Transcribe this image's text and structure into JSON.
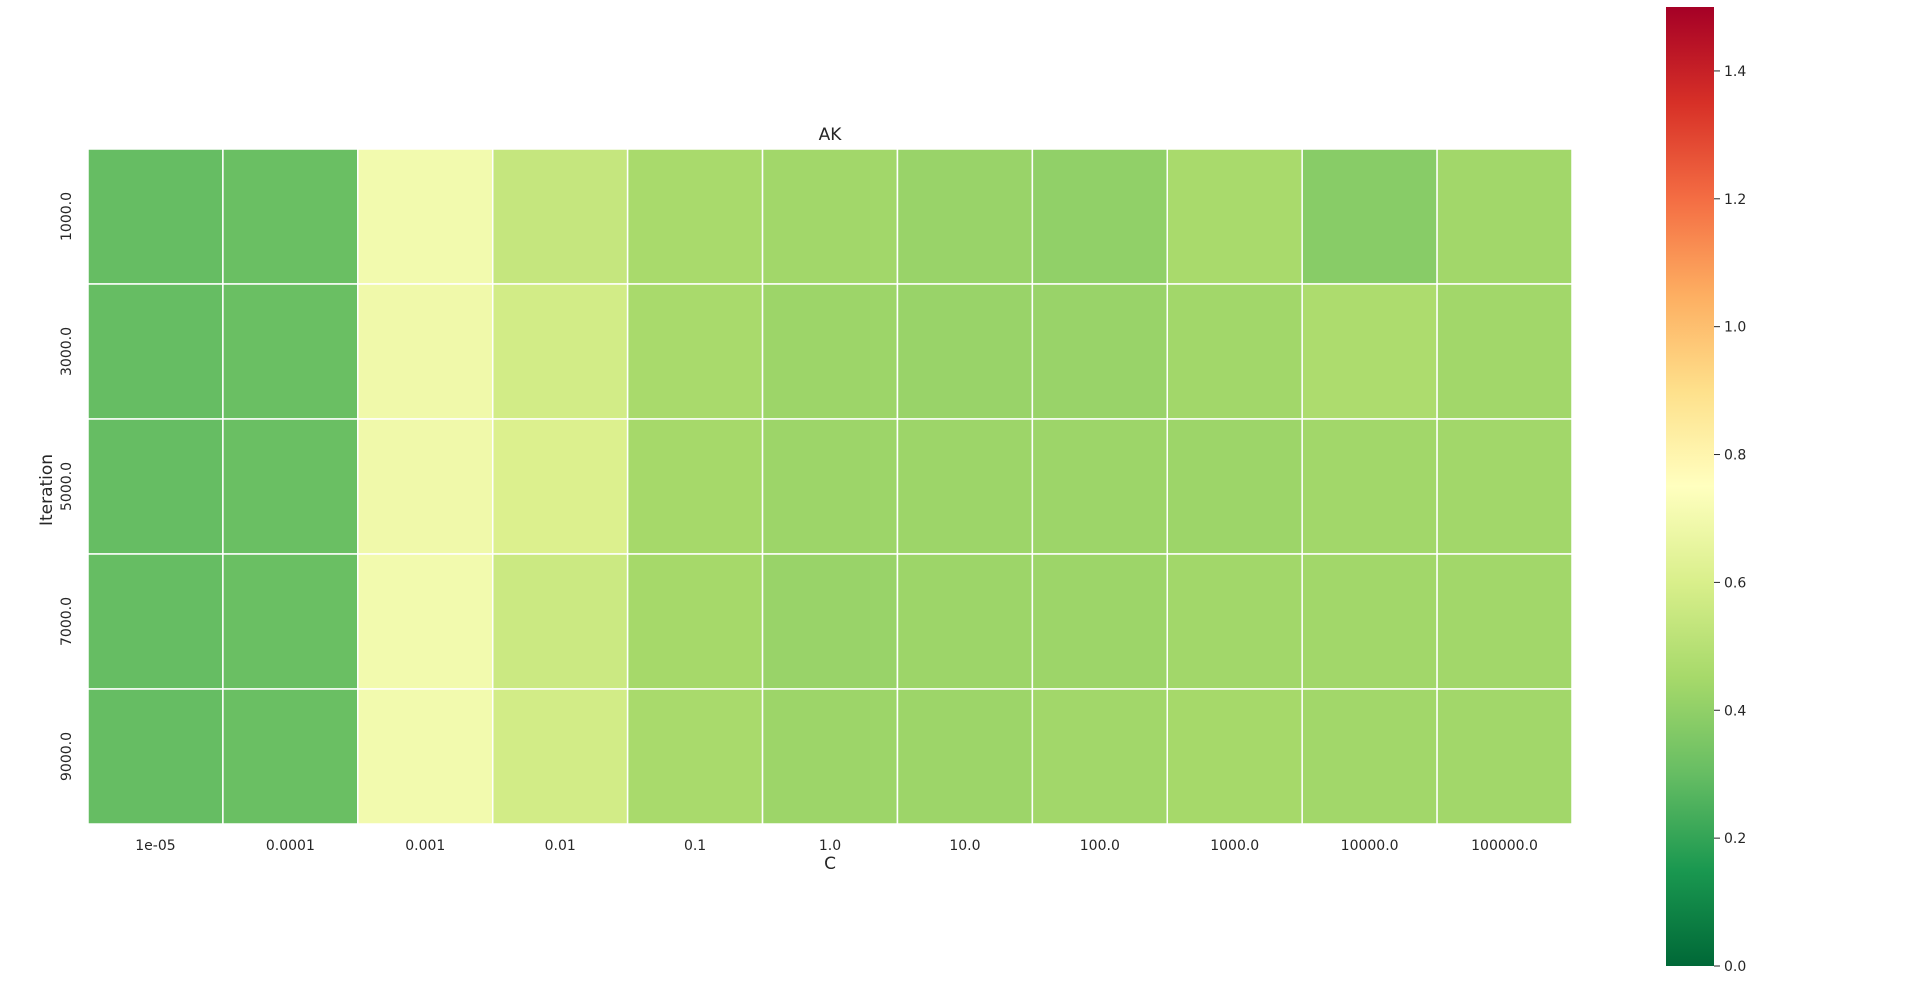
{
  "chart_data": {
    "type": "heatmap",
    "title": "AK",
    "xlabel": "C",
    "ylabel": "Iteration",
    "x_categories": [
      "1e-05",
      "0.0001",
      "0.001",
      "0.01",
      "0.1",
      "1.0",
      "10.0",
      "100.0",
      "1000.0",
      "10000.0",
      "100000.0"
    ],
    "y_categories": [
      "1000.0",
      "3000.0",
      "5000.0",
      "7000.0",
      "9000.0"
    ],
    "values": [
      [
        0.3,
        0.31,
        0.7,
        0.54,
        0.46,
        0.44,
        0.42,
        0.4,
        0.46,
        0.38,
        0.44
      ],
      [
        0.3,
        0.31,
        0.69,
        0.58,
        0.46,
        0.43,
        0.42,
        0.42,
        0.44,
        0.47,
        0.44
      ],
      [
        0.3,
        0.31,
        0.69,
        0.61,
        0.45,
        0.43,
        0.43,
        0.43,
        0.43,
        0.44,
        0.44
      ],
      [
        0.3,
        0.31,
        0.7,
        0.56,
        0.45,
        0.42,
        0.43,
        0.43,
        0.44,
        0.44,
        0.44
      ],
      [
        0.3,
        0.31,
        0.7,
        0.58,
        0.46,
        0.43,
        0.43,
        0.44,
        0.45,
        0.44,
        0.44
      ]
    ],
    "colormap": "RdYlGn_r",
    "colorbar": {
      "min": 0.0,
      "max": 1.5,
      "ticks": [
        "0.0",
        "0.2",
        "0.4",
        "0.6",
        "0.8",
        "1.0",
        "1.2",
        "1.4"
      ]
    },
    "grid": true,
    "cell_border_color": "#ffffff"
  }
}
